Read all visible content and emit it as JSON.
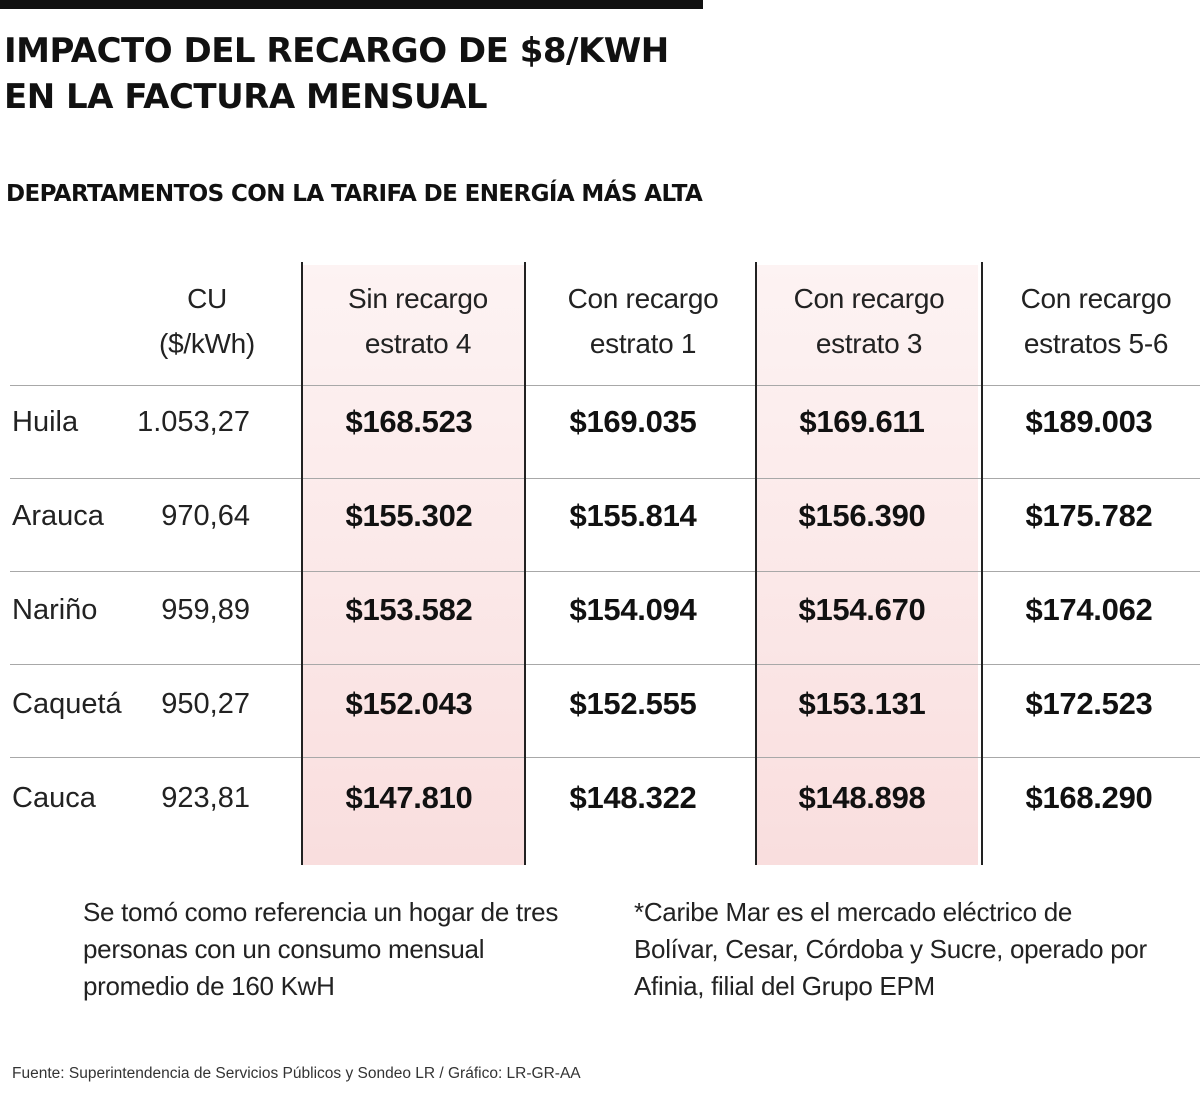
{
  "header": {
    "title_line1": "IMPACTO DEL RECARGO DE $8/KWH",
    "title_line2": "EN LA FACTURA MENSUAL",
    "subtitle": "DEPARTAMENTOS CON LA TARIFA DE ENERGÍA MÁS ALTA"
  },
  "columns": [
    {
      "line1": "CU",
      "line2": "($/kWh)"
    },
    {
      "line1": "Sin recargo",
      "line2": "estrato 4"
    },
    {
      "line1": "Con recargo",
      "line2": "estrato 1"
    },
    {
      "line1": "Con recargo",
      "line2": "estrato 3"
    },
    {
      "line1": "Con recargo",
      "line2": "estratos 5-6"
    }
  ],
  "rows": [
    {
      "name": "Huila",
      "cu": "1.053,27",
      "values": [
        "$168.523",
        "$169.035",
        "$169.611",
        "$189.003"
      ]
    },
    {
      "name": "Arauca",
      "cu": "970,64",
      "values": [
        "$155.302",
        "$155.814",
        "$156.390",
        "$175.782"
      ]
    },
    {
      "name": "Nariño",
      "cu": "959,89",
      "values": [
        "$153.582",
        "$154.094",
        "$154.670",
        "$174.062"
      ]
    },
    {
      "name": "Caquetá",
      "cu": "950,27",
      "values": [
        "$152.043",
        "$152.555",
        "$153.131",
        "$172.523"
      ]
    },
    {
      "name": "Cauca",
      "cu": "923,81",
      "values": [
        "$147.810",
        "$148.322",
        "$148.898",
        "$168.290"
      ]
    }
  ],
  "notes": {
    "left": [
      "Se tomó como referencia un hogar de tres",
      "personas con un consumo mensual",
      "promedio de 160 KwH"
    ],
    "right": [
      "*Caribe Mar es el mercado eléctrico de",
      "Bolívar, Cesar, Córdoba y Sucre, operado por",
      "Afinia, filial del Grupo EPM"
    ]
  },
  "source": "Fuente: Superintendencia de Servicios Públicos y Sondeo LR / Gráfico: LR-GR-AA",
  "colors": {
    "highlight_top": "#fdf3f3",
    "highlight_bottom": "#f9dede",
    "rule": "#a8a8a8",
    "text": "#111111"
  },
  "chart_data": {
    "type": "table",
    "title": "IMPACTO DEL RECARGO DE $8/KWH EN LA FACTURA MENSUAL",
    "subtitle": "DEPARTAMENTOS CON LA TARIFA DE ENERGÍA MÁS ALTA",
    "columns": [
      "CU ($/kWh)",
      "Sin recargo estrato 4",
      "Con recargo estrato 1",
      "Con recargo estrato 3",
      "Con recargo estratos 5-6"
    ],
    "categories": [
      "Huila",
      "Arauca",
      "Nariño",
      "Caquetá",
      "Cauca"
    ],
    "series": [
      {
        "name": "CU ($/kWh)",
        "values": [
          1053.27,
          970.64,
          959.89,
          950.27,
          923.81
        ]
      },
      {
        "name": "Sin recargo estrato 4",
        "values": [
          168523,
          155302,
          153582,
          152043,
          147810
        ]
      },
      {
        "name": "Con recargo estrato 1",
        "values": [
          169035,
          155814,
          154094,
          152555,
          148322
        ]
      },
      {
        "name": "Con recargo estrato 3",
        "values": [
          169611,
          156390,
          154670,
          153131,
          148898
        ]
      },
      {
        "name": "Con recargo estratos 5-6",
        "values": [
          189003,
          175782,
          174062,
          172523,
          168290
        ]
      }
    ]
  }
}
